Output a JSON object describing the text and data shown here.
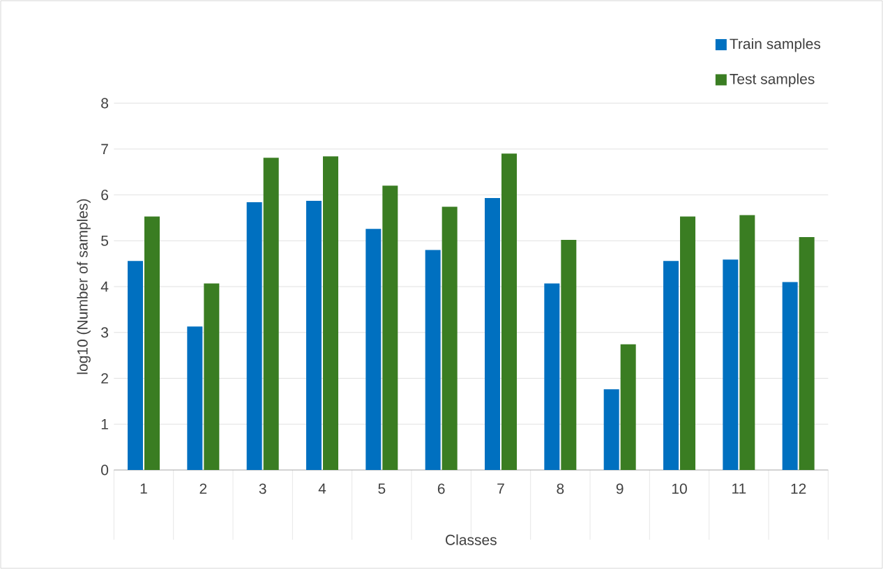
{
  "chart_data": {
    "type": "bar",
    "categories": [
      "1",
      "2",
      "3",
      "4",
      "5",
      "6",
      "7",
      "8",
      "9",
      "10",
      "11",
      "12"
    ],
    "series": [
      {
        "name": "Train samples",
        "color": "#0070c0",
        "values": [
          4.56,
          3.13,
          5.84,
          5.87,
          5.26,
          4.8,
          5.93,
          4.07,
          1.76,
          4.56,
          4.59,
          4.1
        ]
      },
      {
        "name": "Test samples",
        "color": "#3a7d22",
        "values": [
          5.53,
          4.07,
          6.81,
          6.84,
          6.2,
          5.74,
          6.9,
          5.02,
          2.74,
          5.53,
          5.56,
          5.08
        ]
      }
    ],
    "xlabel": "Classes",
    "ylabel": "log10 (Number of samples)",
    "ylim": [
      0,
      8
    ],
    "yticks": [
      0,
      1,
      2,
      3,
      4,
      5,
      6,
      7,
      8
    ],
    "grid": "y",
    "legend": "top right"
  }
}
